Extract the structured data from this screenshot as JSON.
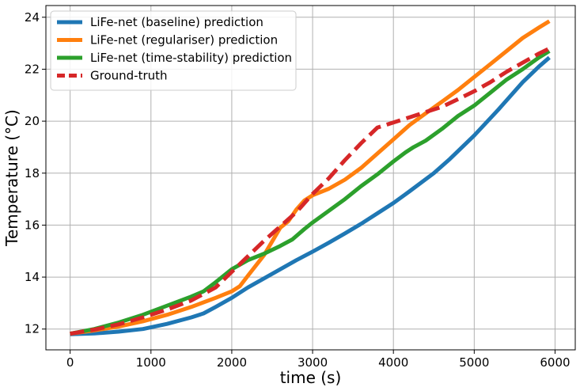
{
  "chart_data": {
    "type": "line",
    "title": "",
    "xlabel": "time (s)",
    "ylabel": "Temperature (°C)",
    "xlim": [
      -300,
      6250
    ],
    "ylim": [
      11.2,
      24.45
    ],
    "xticks": [
      0,
      1000,
      2000,
      3000,
      4000,
      5000,
      6000
    ],
    "yticks": [
      12,
      14,
      16,
      18,
      20,
      22,
      24
    ],
    "xtick_labels": [
      "0",
      "1000",
      "2000",
      "3000",
      "4000",
      "5000",
      "6000"
    ],
    "ytick_labels": [
      "12",
      "14",
      "16",
      "18",
      "20",
      "22",
      "24"
    ],
    "grid": true,
    "legend_position": "top-left",
    "series": [
      {
        "name": "LiFe-net (baseline) prediction",
        "color": "#1f77b4",
        "dash": false,
        "x": [
          0,
          300,
          600,
          900,
          1200,
          1500,
          1650,
          1800,
          2000,
          2200,
          2400,
          2600,
          2800,
          3000,
          3200,
          3400,
          3600,
          3800,
          4000,
          4200,
          4350,
          4500,
          4700,
          5000,
          5300,
          5600,
          5800,
          5930
        ],
        "y": [
          11.8,
          11.83,
          11.9,
          12.0,
          12.2,
          12.45,
          12.6,
          12.85,
          13.2,
          13.6,
          13.95,
          14.3,
          14.65,
          14.98,
          15.32,
          15.68,
          16.05,
          16.45,
          16.85,
          17.3,
          17.65,
          18.0,
          18.55,
          19.45,
          20.45,
          21.5,
          22.1,
          22.45
        ]
      },
      {
        "name": "LiFe-net (regulariser) prediction",
        "color": "#ff7f0e",
        "dash": false,
        "x": [
          0,
          300,
          600,
          900,
          1200,
          1500,
          1800,
          2000,
          2100,
          2200,
          2400,
          2600,
          2700,
          2800,
          2900,
          3000,
          3200,
          3400,
          3600,
          3800,
          4000,
          4200,
          4400,
          4600,
          4800,
          5000,
          5200,
          5400,
          5600,
          5800,
          5930
        ],
        "y": [
          11.82,
          11.95,
          12.1,
          12.3,
          12.55,
          12.85,
          13.2,
          13.45,
          13.65,
          14.05,
          14.85,
          15.9,
          16.15,
          16.6,
          16.95,
          17.15,
          17.4,
          17.75,
          18.2,
          18.75,
          19.3,
          19.85,
          20.3,
          20.75,
          21.2,
          21.7,
          22.2,
          22.7,
          23.2,
          23.6,
          23.85
        ]
      },
      {
        "name": "LiFe-net (time-stability) prediction",
        "color": "#2ca02c",
        "dash": false,
        "x": [
          0,
          300,
          600,
          900,
          1200,
          1500,
          1650,
          1800,
          2000,
          2200,
          2400,
          2600,
          2750,
          2900,
          3000,
          3200,
          3400,
          3600,
          3800,
          4000,
          4150,
          4250,
          4400,
          4600,
          4800,
          5000,
          5200,
          5400,
          5600,
          5800,
          5930
        ],
        "y": [
          11.82,
          12.0,
          12.25,
          12.55,
          12.9,
          13.25,
          13.45,
          13.8,
          14.3,
          14.65,
          14.9,
          15.2,
          15.45,
          15.85,
          16.1,
          16.55,
          17.0,
          17.5,
          17.95,
          18.45,
          18.8,
          19.0,
          19.25,
          19.7,
          20.2,
          20.6,
          21.1,
          21.6,
          22.0,
          22.45,
          22.7
        ]
      },
      {
        "name": "Ground-truth",
        "color": "#d62728",
        "dash": true,
        "x": [
          0,
          300,
          600,
          900,
          1200,
          1500,
          1800,
          2000,
          2200,
          2400,
          2600,
          2800,
          3000,
          3200,
          3400,
          3600,
          3800,
          4000,
          4200,
          4400,
          4600,
          4800,
          5000,
          5200,
          5400,
          5600,
          5800,
          5930
        ],
        "y": [
          11.82,
          11.98,
          12.18,
          12.45,
          12.75,
          13.1,
          13.6,
          14.2,
          14.8,
          15.4,
          15.95,
          16.5,
          17.2,
          17.8,
          18.5,
          19.15,
          19.75,
          19.95,
          20.15,
          20.35,
          20.55,
          20.85,
          21.15,
          21.5,
          21.9,
          22.25,
          22.6,
          22.8
        ]
      }
    ]
  }
}
